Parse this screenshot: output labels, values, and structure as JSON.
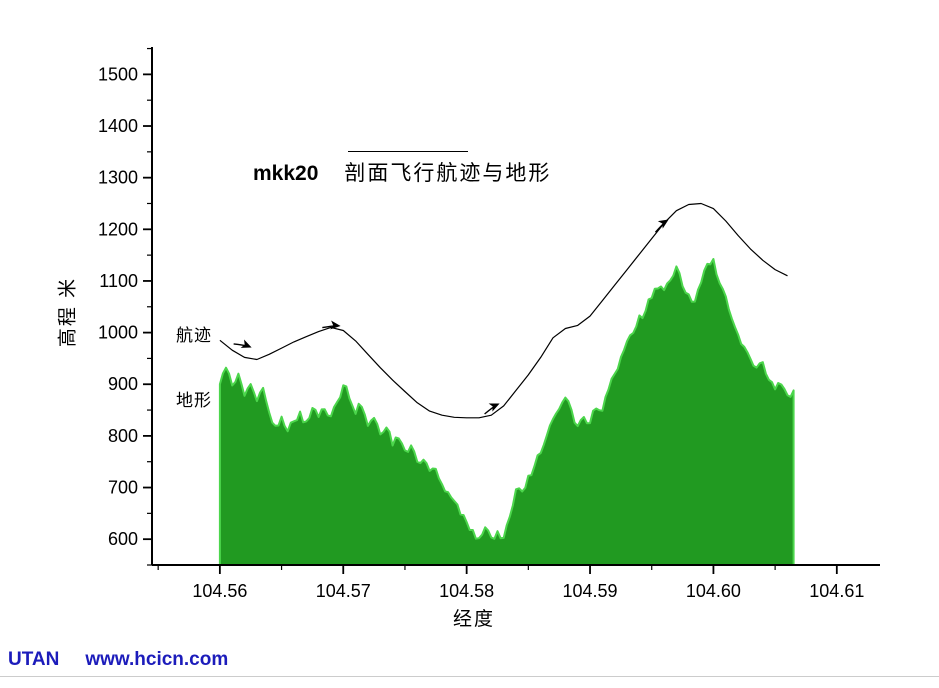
{
  "footer": {
    "brand": "UTAN",
    "url": "www.hcicn.com",
    "color": "#1c1cbb"
  },
  "chart_data": {
    "type": "area+line",
    "title": {
      "code": "mkk20",
      "text": "剖面飞行航迹与地形"
    },
    "xlabel": "经度",
    "ylabel": "高程 米",
    "x_range": [
      104.5545,
      104.6135
    ],
    "y_range": [
      550,
      1553
    ],
    "axis_color": "#000000",
    "x_ticks": {
      "values": [
        104.56,
        104.57,
        104.58,
        104.59,
        104.6,
        104.61
      ],
      "labels": [
        "104.56",
        "104.57",
        "104.58",
        "104.59",
        "104.60",
        "104.61"
      ],
      "minor": [
        104.555,
        104.565,
        104.575,
        104.585,
        104.595,
        104.605
      ]
    },
    "y_ticks": {
      "values": [
        600,
        700,
        800,
        900,
        1000,
        1100,
        1200,
        1300,
        1400,
        1500
      ],
      "labels": [
        "600",
        "700",
        "800",
        "900",
        "1000",
        "1100",
        "1200",
        "1300",
        "1400",
        "1500"
      ],
      "minor": [
        550,
        650,
        750,
        850,
        950,
        1050,
        1150,
        1250,
        1350,
        1450,
        1550
      ]
    },
    "labels": {
      "track": "航迹",
      "terrain": "地形"
    },
    "series": {
      "terrain": {
        "name": "地形",
        "type": "area",
        "fill": "#219a21",
        "edge": "#4cd64c",
        "roughness": 10,
        "x_start": 104.56,
        "x_step": 0.0005,
        "y": [
          900,
          935,
          895,
          920,
          880,
          900,
          870,
          890,
          845,
          820,
          835,
          810,
          830,
          845,
          825,
          850,
          835,
          855,
          840,
          865,
          900,
          875,
          845,
          860,
          820,
          835,
          800,
          815,
          785,
          795,
          770,
          780,
          750,
          755,
          730,
          740,
          705,
          690,
          670,
          650,
          635,
          615,
          605,
          620,
          600,
          615,
          605,
          640,
          700,
          690,
          720,
          740,
          770,
          800,
          830,
          855,
          875,
          850,
          820,
          840,
          825,
          855,
          850,
          890,
          920,
          950,
          985,
          1000,
          1030,
          1045,
          1070,
          1085,
          1080,
          1100,
          1125,
          1090,
          1070,
          1060,
          1095,
          1130,
          1140,
          1095,
          1070,
          1030,
          1000,
          975,
          950,
          930,
          940,
          910,
          890,
          900,
          880,
          885
        ]
      },
      "track": {
        "name": "航迹",
        "type": "line",
        "color": "#000000",
        "x_start": 104.56,
        "x_step": 0.001,
        "y": [
          985,
          966,
          952,
          948,
          958,
          970,
          982,
          992,
          1002,
          1010,
          1004,
          984,
          958,
          932,
          908,
          886,
          864,
          848,
          840,
          836,
          835,
          835,
          840,
          858,
          888,
          918,
          952,
          990,
          1008,
          1014,
          1032,
          1062,
          1092,
          1122,
          1152,
          1182,
          1212,
          1236,
          1248,
          1250,
          1240,
          1216,
          1188,
          1162,
          1140,
          1122,
          1110
        ]
      }
    },
    "arrows": [
      {
        "x": 104.5625,
        "y": 972,
        "angle": 22
      },
      {
        "x": 104.5697,
        "y": 1013,
        "angle": 6
      },
      {
        "x": 104.5826,
        "y": 862,
        "angle": -24
      },
      {
        "x": 104.5963,
        "y": 1218,
        "angle": -33
      }
    ]
  }
}
